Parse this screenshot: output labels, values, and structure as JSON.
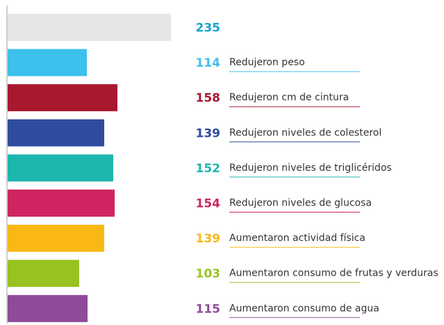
{
  "chart_data": {
    "type": "bar",
    "orientation": "horizontal",
    "categories": [
      null,
      "Redujeron peso",
      "Redujeron cm de cintura",
      "Redujeron niveles de colesterol",
      "Redujeron niveles de triglicéridos",
      "Redujeron niveles de glucosa",
      "Aumentaron actividad física",
      "Aumentaron consumo de frutas y verduras",
      "Aumentaron consumo de agua"
    ],
    "values": [
      235,
      114,
      158,
      139,
      152,
      154,
      139,
      103,
      115
    ],
    "colors": [
      "#e6e6e6",
      "#3cc0ec",
      "#a8182f",
      "#2f4d9f",
      "#1db6ae",
      "#cf2562",
      "#f9b814",
      "#97c21f",
      "#8e4b98"
    ],
    "label_colors": [
      "#1aa3c9",
      "#3cc0ec",
      "#a8182f",
      "#2f4d9f",
      "#1db6ae",
      "#cf2562",
      "#f9b814",
      "#97c21f",
      "#8e4b98"
    ],
    "xlim": [
      0,
      235
    ]
  }
}
